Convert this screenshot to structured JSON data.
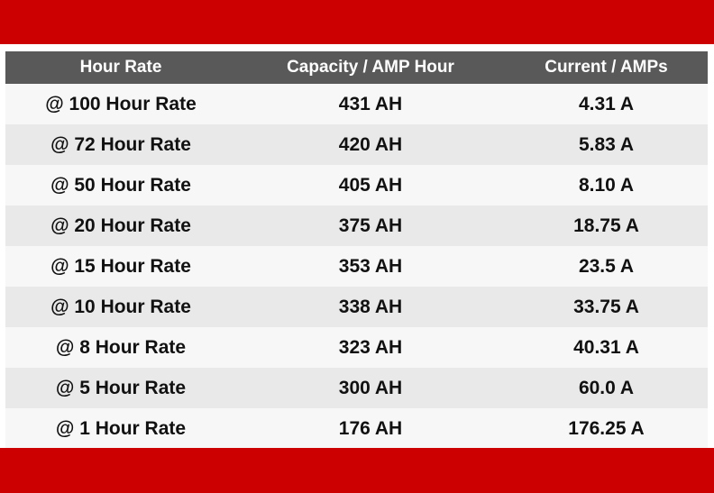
{
  "colors": {
    "band": "#cc0000",
    "header_bg": "#595959",
    "row_odd": "#f7f7f7",
    "row_even": "#e9e9e9"
  },
  "table": {
    "headers": [
      "Hour Rate",
      "Capacity / AMP Hour",
      "Current / AMPs"
    ],
    "rows": [
      [
        "@ 100 Hour Rate",
        "431 AH",
        "4.31 A"
      ],
      [
        "@ 72 Hour Rate",
        "420 AH",
        "5.83 A"
      ],
      [
        "@ 50 Hour Rate",
        "405 AH",
        "8.10 A"
      ],
      [
        "@ 20 Hour Rate",
        "375 AH",
        "18.75 A"
      ],
      [
        "@ 15 Hour Rate",
        "353 AH",
        "23.5 A"
      ],
      [
        "@ 10 Hour Rate",
        "338 AH",
        "33.75 A"
      ],
      [
        "@ 8 Hour Rate",
        "323 AH",
        "40.31 A"
      ],
      [
        "@ 5 Hour Rate",
        "300 AH",
        "60.0 A"
      ],
      [
        "@ 1 Hour Rate",
        "176 AH",
        "176.25 A"
      ]
    ]
  }
}
